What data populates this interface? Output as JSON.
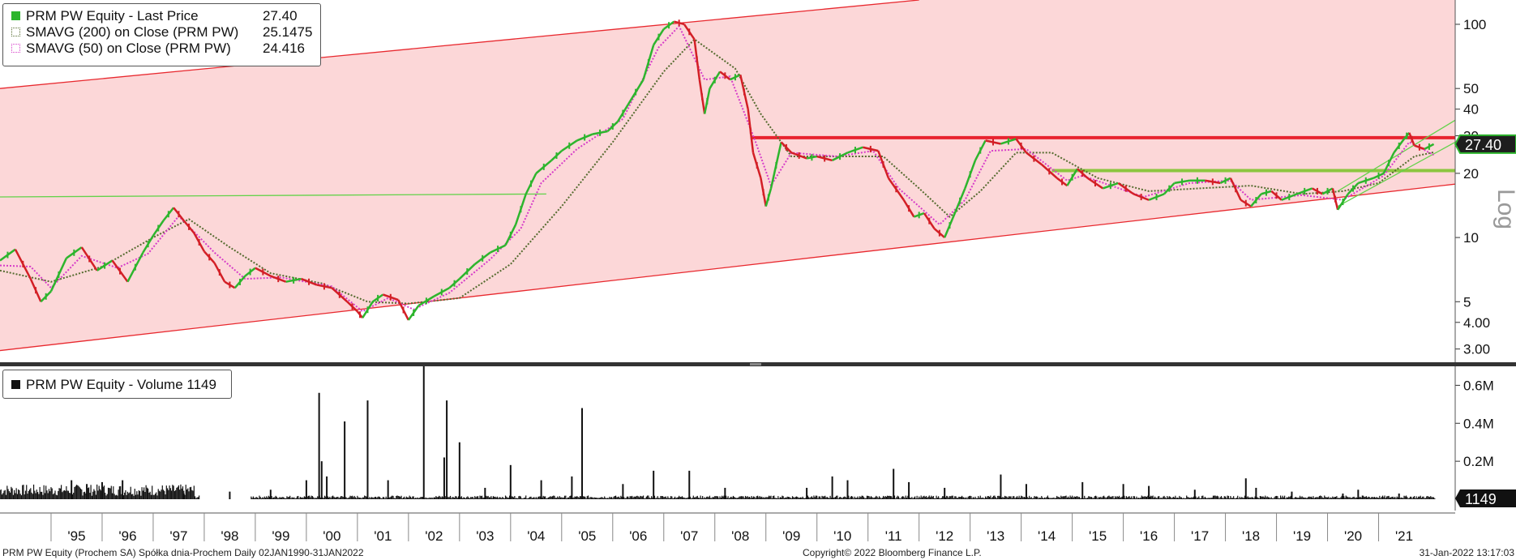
{
  "chart_data": [
    {
      "type": "line",
      "legend": [
        {
          "name": "PRM PW Equity - Last Price",
          "value": "27.40",
          "color": "#2db52d",
          "style": "solid"
        },
        {
          "name": "SMAVG (200)  on Close (PRM PW)",
          "value": "25.1475",
          "color": "#556b2f",
          "style": "dotted"
        },
        {
          "name": "SMAVG (50)  on Close (PRM PW)",
          "value": "24.416",
          "color": "#d63cc8",
          "style": "dotted"
        }
      ],
      "y_scale": "log",
      "y_scale_label": "Log",
      "ylim": [
        2.6,
        130
      ],
      "yticks": [
        {
          "v": 100,
          "label": "100"
        },
        {
          "v": 50,
          "label": "50"
        },
        {
          "v": 40,
          "label": "40"
        },
        {
          "v": 30,
          "label": "30"
        },
        {
          "v": 20,
          "label": "20"
        },
        {
          "v": 10,
          "label": "10"
        },
        {
          "v": 5,
          "label": "5"
        },
        {
          "v": 4,
          "label": "4.00"
        },
        {
          "v": 3,
          "label": "3.00"
        }
      ],
      "last_price_label": "27.40",
      "price_path": [
        [
          1994.0,
          7.8
        ],
        [
          1994.3,
          8.8
        ],
        [
          1994.6,
          6.4
        ],
        [
          1994.8,
          5.0
        ],
        [
          1995.0,
          5.6
        ],
        [
          1995.3,
          8.0
        ],
        [
          1995.6,
          9.0
        ],
        [
          1995.9,
          7.0
        ],
        [
          1996.2,
          7.8
        ],
        [
          1996.5,
          6.2
        ],
        [
          1996.8,
          8.5
        ],
        [
          1997.0,
          10.2
        ],
        [
          1997.2,
          12.0
        ],
        [
          1997.4,
          13.8
        ],
        [
          1997.6,
          12.0
        ],
        [
          1997.8,
          10.5
        ],
        [
          1998.0,
          8.6
        ],
        [
          1998.2,
          7.6
        ],
        [
          1998.4,
          6.2
        ],
        [
          1998.6,
          5.8
        ],
        [
          1998.8,
          6.6
        ],
        [
          1999.0,
          7.2
        ],
        [
          1999.3,
          6.6
        ],
        [
          1999.6,
          6.2
        ],
        [
          1999.9,
          6.4
        ],
        [
          2000.2,
          6.0
        ],
        [
          2000.5,
          5.8
        ],
        [
          2000.8,
          5.0
        ],
        [
          2001.0,
          4.5
        ],
        [
          2001.1,
          4.2
        ],
        [
          2001.3,
          5.0
        ],
        [
          2001.5,
          5.4
        ],
        [
          2001.8,
          5.1
        ],
        [
          2002.0,
          4.1
        ],
        [
          2002.2,
          4.8
        ],
        [
          2002.5,
          5.3
        ],
        [
          2002.8,
          5.8
        ],
        [
          2003.0,
          6.4
        ],
        [
          2003.3,
          7.5
        ],
        [
          2003.6,
          8.5
        ],
        [
          2003.9,
          9.2
        ],
        [
          2004.1,
          11.5
        ],
        [
          2004.3,
          16.0
        ],
        [
          2004.5,
          20.0
        ],
        [
          2004.8,
          23.0
        ],
        [
          2005.0,
          25.5
        ],
        [
          2005.3,
          28.5
        ],
        [
          2005.6,
          30.5
        ],
        [
          2005.9,
          31.5
        ],
        [
          2006.1,
          35.0
        ],
        [
          2006.3,
          42.0
        ],
        [
          2006.6,
          55.0
        ],
        [
          2006.8,
          80.0
        ],
        [
          2007.0,
          95.0
        ],
        [
          2007.2,
          103.0
        ],
        [
          2007.4,
          100.0
        ],
        [
          2007.6,
          85.0
        ],
        [
          2007.7,
          55.0
        ],
        [
          2007.8,
          38.0
        ],
        [
          2007.9,
          50.0
        ],
        [
          2008.1,
          60.0
        ],
        [
          2008.3,
          55.0
        ],
        [
          2008.5,
          58.0
        ],
        [
          2008.65,
          40.0
        ],
        [
          2008.75,
          25.0
        ],
        [
          2008.9,
          19.0
        ],
        [
          2009.0,
          14.0
        ],
        [
          2009.1,
          17.0
        ],
        [
          2009.3,
          28.0
        ],
        [
          2009.5,
          25.0
        ],
        [
          2009.8,
          23.5
        ],
        [
          2010.0,
          24.0
        ],
        [
          2010.3,
          23.0
        ],
        [
          2010.6,
          25.0
        ],
        [
          2010.9,
          26.5
        ],
        [
          2011.2,
          25.5
        ],
        [
          2011.4,
          19.0
        ],
        [
          2011.7,
          15.0
        ],
        [
          2011.9,
          12.5
        ],
        [
          2012.1,
          13.0
        ],
        [
          2012.3,
          11.0
        ],
        [
          2012.5,
          10.0
        ],
        [
          2012.7,
          13.0
        ],
        [
          2012.9,
          17.0
        ],
        [
          2013.1,
          23.0
        ],
        [
          2013.3,
          28.5
        ],
        [
          2013.6,
          27.5
        ],
        [
          2013.9,
          29.0
        ],
        [
          2014.1,
          25.0
        ],
        [
          2014.4,
          22.0
        ],
        [
          2014.7,
          19.0
        ],
        [
          2014.9,
          17.5
        ],
        [
          2015.1,
          21.0
        ],
        [
          2015.3,
          19.0
        ],
        [
          2015.6,
          17.0
        ],
        [
          2015.9,
          18.0
        ],
        [
          2016.2,
          16.0
        ],
        [
          2016.5,
          15.0
        ],
        [
          2016.8,
          16.0
        ],
        [
          2017.0,
          18.0
        ],
        [
          2017.3,
          18.5
        ],
        [
          2017.6,
          18.5
        ],
        [
          2017.9,
          18.0
        ],
        [
          2018.1,
          19.0
        ],
        [
          2018.3,
          15.0
        ],
        [
          2018.5,
          14.0
        ],
        [
          2018.7,
          16.0
        ],
        [
          2018.9,
          16.5
        ],
        [
          2019.1,
          15.0
        ],
        [
          2019.4,
          16.0
        ],
        [
          2019.7,
          17.0
        ],
        [
          2019.9,
          16.0
        ],
        [
          2020.1,
          17.0
        ],
        [
          2020.2,
          13.5
        ],
        [
          2020.4,
          16.0
        ],
        [
          2020.6,
          18.0
        ],
        [
          2020.9,
          19.0
        ],
        [
          2021.1,
          20.0
        ],
        [
          2021.3,
          25.0
        ],
        [
          2021.5,
          29.0
        ],
        [
          2021.6,
          31.0
        ],
        [
          2021.7,
          27.0
        ],
        [
          2021.9,
          26.0
        ],
        [
          2022.08,
          27.4
        ]
      ],
      "sma200_path": [
        [
          1994.0,
          7.0
        ],
        [
          1995.0,
          6.2
        ],
        [
          1996.0,
          7.3
        ],
        [
          1997.0,
          10.0
        ],
        [
          1997.7,
          12.2
        ],
        [
          1998.5,
          9.0
        ],
        [
          1999.3,
          6.8
        ],
        [
          2000.3,
          6.1
        ],
        [
          2001.2,
          5.0
        ],
        [
          2002.0,
          4.9
        ],
        [
          2003.0,
          5.2
        ],
        [
          2004.0,
          7.5
        ],
        [
          2005.0,
          14.0
        ],
        [
          2006.0,
          28.0
        ],
        [
          2007.0,
          60.0
        ],
        [
          2007.6,
          85.0
        ],
        [
          2008.4,
          62.0
        ],
        [
          2008.9,
          38.0
        ],
        [
          2009.5,
          24.0
        ],
        [
          2010.5,
          24.0
        ],
        [
          2011.3,
          24.0
        ],
        [
          2012.0,
          17.0
        ],
        [
          2012.6,
          12.5
        ],
        [
          2013.2,
          16.5
        ],
        [
          2013.9,
          25.0
        ],
        [
          2014.6,
          25.0
        ],
        [
          2015.5,
          19.0
        ],
        [
          2016.5,
          16.5
        ],
        [
          2017.5,
          17.0
        ],
        [
          2018.5,
          17.5
        ],
        [
          2019.5,
          16.0
        ],
        [
          2020.3,
          16.5
        ],
        [
          2021.0,
          18.0
        ],
        [
          2021.7,
          24.0
        ],
        [
          2022.08,
          25.1
        ]
      ],
      "sma50_path": [
        [
          1994.0,
          7.4
        ],
        [
          1994.6,
          7.3
        ],
        [
          1995.0,
          5.8
        ],
        [
          1995.6,
          8.2
        ],
        [
          1996.3,
          7.2
        ],
        [
          1996.9,
          8.4
        ],
        [
          1997.5,
          12.6
        ],
        [
          1998.2,
          8.5
        ],
        [
          1998.8,
          6.4
        ],
        [
          1999.5,
          6.5
        ],
        [
          2000.5,
          5.9
        ],
        [
          2001.1,
          4.5
        ],
        [
          2001.6,
          5.2
        ],
        [
          2002.1,
          4.6
        ],
        [
          2002.8,
          5.5
        ],
        [
          2003.6,
          7.9
        ],
        [
          2004.2,
          11.0
        ],
        [
          2004.6,
          18.0
        ],
        [
          2005.3,
          26.0
        ],
        [
          2006.2,
          36.0
        ],
        [
          2006.9,
          78.0
        ],
        [
          2007.3,
          98.0
        ],
        [
          2007.8,
          55.0
        ],
        [
          2008.3,
          57.0
        ],
        [
          2008.8,
          28.0
        ],
        [
          2009.1,
          17.5
        ],
        [
          2009.5,
          25.0
        ],
        [
          2010.4,
          24.0
        ],
        [
          2011.1,
          25.5
        ],
        [
          2011.6,
          17.0
        ],
        [
          2012.4,
          11.5
        ],
        [
          2012.9,
          15.0
        ],
        [
          2013.4,
          25.5
        ],
        [
          2014.1,
          26.0
        ],
        [
          2014.9,
          18.5
        ],
        [
          2015.2,
          19.5
        ],
        [
          2016.4,
          15.5
        ],
        [
          2017.3,
          18.0
        ],
        [
          2018.1,
          18.5
        ],
        [
          2018.5,
          15.0
        ],
        [
          2019.5,
          15.8
        ],
        [
          2020.3,
          15.0
        ],
        [
          2021.1,
          19.5
        ],
        [
          2021.6,
          28.0
        ],
        [
          2022.08,
          24.4
        ]
      ],
      "trendlines": [
        {
          "name": "upper-channel",
          "color": "#e8292f",
          "from": [
            1994.0,
            50.0
          ],
          "to": [
            2012.0,
            130.0
          ]
        },
        {
          "name": "lower-channel",
          "color": "#e8292f",
          "from": [
            1994.0,
            2.95
          ],
          "to": [
            2022.5,
            17.8
          ]
        },
        {
          "name": "resistance",
          "color": "#e8232f",
          "from": [
            2008.7,
            29.4
          ],
          "to": [
            2022.5,
            29.4
          ]
        },
        {
          "name": "support",
          "color": "#8cc63f",
          "from": [
            2014.6,
            20.6
          ],
          "to": [
            2022.5,
            20.6
          ]
        },
        {
          "name": "early-green",
          "color": "#63d24a",
          "from": [
            1994.0,
            15.5
          ],
          "to": [
            2004.7,
            16.0
          ]
        },
        {
          "name": "uptrend-lower",
          "color": "#63d24a",
          "from": [
            2020.2,
            14.0
          ],
          "to": [
            2022.5,
            28.0
          ]
        },
        {
          "name": "uptrend-upper",
          "color": "#63d24a",
          "from": [
            2020.2,
            16.5
          ],
          "to": [
            2022.5,
            35.5
          ]
        }
      ]
    },
    {
      "type": "bar",
      "legend": [
        {
          "name": "PRM PW Equity - Volume 1149",
          "color": "#111111"
        }
      ],
      "ylim": [
        0,
        0.7
      ],
      "yticks": [
        {
          "v": 0.2,
          "label": "0.2M"
        },
        {
          "v": 0.4,
          "label": "0.4M"
        },
        {
          "v": 0.6,
          "label": "0.6M"
        }
      ],
      "last_volume_label": "1149",
      "volume_spikes": [
        [
          1995.4,
          0.1
        ],
        [
          1995.7,
          0.08
        ],
        [
          1996.0,
          0.09
        ],
        [
          1996.4,
          0.1
        ],
        [
          1997.6,
          0.03
        ],
        [
          1998.5,
          0.04
        ],
        [
          1999.3,
          0.05
        ],
        [
          2000.0,
          0.1
        ],
        [
          2000.25,
          0.56
        ],
        [
          2000.3,
          0.2
        ],
        [
          2000.4,
          0.12
        ],
        [
          2000.75,
          0.41
        ],
        [
          2001.2,
          0.52
        ],
        [
          2001.6,
          0.1
        ],
        [
          2002.3,
          0.7
        ],
        [
          2002.7,
          0.22
        ],
        [
          2002.75,
          0.52
        ],
        [
          2003.0,
          0.3
        ],
        [
          2003.5,
          0.06
        ],
        [
          2004.0,
          0.18
        ],
        [
          2004.6,
          0.1
        ],
        [
          2005.2,
          0.12
        ],
        [
          2005.4,
          0.48
        ],
        [
          2006.2,
          0.08
        ],
        [
          2006.8,
          0.15
        ],
        [
          2007.5,
          0.15
        ],
        [
          2008.2,
          0.06
        ],
        [
          2009.8,
          0.06
        ],
        [
          2010.3,
          0.12
        ],
        [
          2010.6,
          0.1
        ],
        [
          2011.5,
          0.16
        ],
        [
          2011.8,
          0.09
        ],
        [
          2012.5,
          0.06
        ],
        [
          2013.6,
          0.13
        ],
        [
          2014.1,
          0.08
        ],
        [
          2015.2,
          0.09
        ],
        [
          2016.0,
          0.08
        ],
        [
          2016.5,
          0.07
        ],
        [
          2017.4,
          0.05
        ],
        [
          2018.4,
          0.11
        ],
        [
          2018.6,
          0.06
        ],
        [
          2019.3,
          0.04
        ],
        [
          2020.3,
          0.03
        ],
        [
          2020.6,
          0.05
        ],
        [
          2021.4,
          0.03
        ]
      ],
      "volume_gap": [
        1997.9,
        1998.9
      ]
    }
  ],
  "x_axis": {
    "ticks": [
      "'95",
      "'96",
      "'97",
      "'98",
      "'99",
      "'00",
      "'01",
      "'02",
      "'03",
      "'04",
      "'05",
      "'06",
      "'07",
      "'08",
      "'09",
      "'10",
      "'11",
      "'12",
      "'13",
      "'14",
      "'15",
      "'16",
      "'17",
      "'18",
      "'19",
      "'20",
      "'21"
    ],
    "tick_values": [
      1995,
      1996,
      1997,
      1998,
      1999,
      2000,
      2001,
      2002,
      2003,
      2004,
      2005,
      2006,
      2007,
      2008,
      2009,
      2010,
      2011,
      2012,
      2013,
      2014,
      2015,
      2016,
      2017,
      2018,
      2019,
      2020,
      2021
    ],
    "xlim": [
      1994.0,
      2022.5
    ]
  },
  "colors": {
    "channel_fill": "#fcd7d8",
    "channel_line": "#e8292f",
    "resistance": "#e8232f",
    "support": "#8cc63f",
    "price_up": "#2db52d",
    "price_down": "#d31f26",
    "sma200": "#556b2f",
    "sma50": "#d63cc8"
  },
  "footer": {
    "left": "PRM PW Equity (Prochem SA) Spółka dnia-Prochem  Daily 02JAN1990-31JAN2022",
    "center": "Copyright© 2022 Bloomberg Finance L.P.",
    "right": "31-Jan-2022 13:17:03"
  }
}
